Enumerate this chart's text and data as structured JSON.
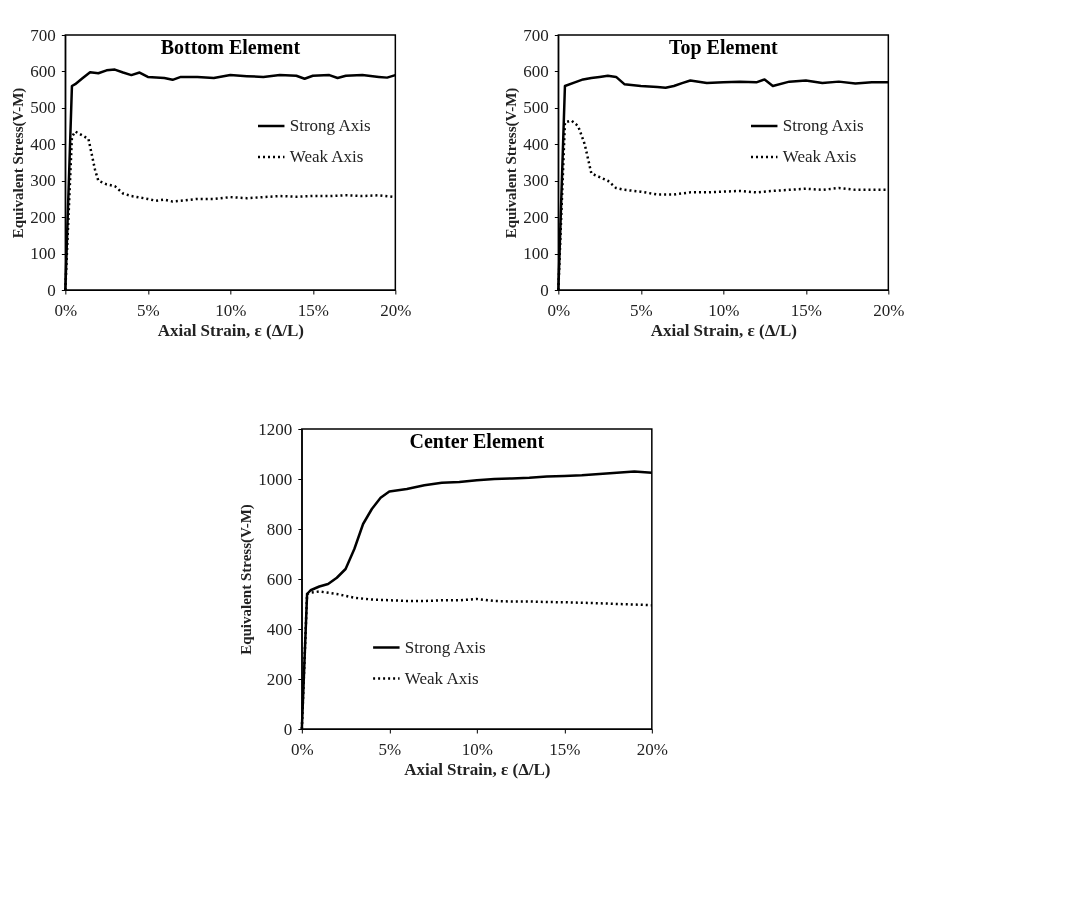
{
  "chart_data": [
    {
      "type": "line",
      "title": "Bottom Element",
      "xlabel": "Axial Strain, ε (Δ/L)",
      "ylabel": "Equivalent Stress(V-M)",
      "xlim": [
        0,
        20
      ],
      "xticks": [
        {
          "value": 0,
          "label": "0%"
        },
        {
          "value": 5,
          "label": "5%"
        },
        {
          "value": 10,
          "label": "10%"
        },
        {
          "value": 15,
          "label": "15%"
        },
        {
          "value": 20,
          "label": "20%"
        }
      ],
      "ylim": [
        0,
        700
      ],
      "yticks": [
        0,
        100,
        200,
        300,
        400,
        500,
        600,
        700
      ],
      "legend": "right",
      "grid": false,
      "series": [
        {
          "name": "Strong Axis",
          "color": "#000000",
          "line_style": "solid",
          "x": [
            0,
            0.4,
            0.6,
            1,
            1.5,
            2,
            2.5,
            3,
            3.5,
            4,
            4.5,
            5,
            6,
            6.5,
            7,
            8,
            9,
            10,
            11,
            12,
            13,
            14,
            14.5,
            15,
            16,
            16.5,
            17,
            18,
            19,
            19.5,
            20
          ],
          "values": [
            0,
            560,
            565,
            580,
            598,
            595,
            603,
            605,
            597,
            590,
            597,
            585,
            582,
            577,
            585,
            585,
            582,
            590,
            587,
            585,
            590,
            588,
            580,
            588,
            590,
            582,
            588,
            590,
            585,
            583,
            590
          ]
        },
        {
          "name": "Weak Axis",
          "color": "#000000",
          "line_style": "dotted",
          "x": [
            0,
            0.4,
            0.6,
            1,
            1.4,
            1.8,
            2,
            2.5,
            3,
            3.5,
            4,
            5,
            5.5,
            6,
            6.5,
            7,
            8,
            9,
            10,
            11,
            12,
            13,
            14,
            15,
            16,
            17,
            18,
            19,
            20
          ],
          "values": [
            0,
            420,
            435,
            425,
            415,
            330,
            300,
            290,
            285,
            265,
            258,
            250,
            245,
            248,
            243,
            245,
            250,
            250,
            255,
            252,
            255,
            258,
            256,
            258,
            258,
            260,
            258,
            260,
            255
          ]
        }
      ]
    },
    {
      "type": "line",
      "title": "Top Element",
      "xlabel": "Axial Strain, ε (Δ/L)",
      "ylabel": "Equivalent Stress(V-M)",
      "xlim": [
        0,
        20
      ],
      "xticks": [
        {
          "value": 0,
          "label": "0%"
        },
        {
          "value": 5,
          "label": "5%"
        },
        {
          "value": 10,
          "label": "10%"
        },
        {
          "value": 15,
          "label": "15%"
        },
        {
          "value": 20,
          "label": "20%"
        }
      ],
      "ylim": [
        0,
        700
      ],
      "yticks": [
        0,
        100,
        200,
        300,
        400,
        500,
        600,
        700
      ],
      "legend": "right",
      "grid": false,
      "series": [
        {
          "name": "Strong Axis",
          "color": "#000000",
          "line_style": "solid",
          "x": [
            0,
            0.4,
            1,
            1.5,
            2,
            2.5,
            3,
            3.5,
            4,
            5,
            6,
            6.5,
            7,
            7.5,
            8,
            9,
            10,
            11,
            12,
            12.5,
            13,
            14,
            15,
            16,
            17,
            18,
            19,
            20
          ],
          "values": [
            0,
            560,
            570,
            578,
            582,
            585,
            588,
            585,
            565,
            560,
            557,
            555,
            560,
            568,
            575,
            568,
            570,
            572,
            570,
            578,
            560,
            572,
            575,
            568,
            572,
            567,
            570,
            570
          ]
        },
        {
          "name": "Weak Axis",
          "color": "#000000",
          "line_style": "dotted",
          "x": [
            0,
            0.4,
            0.8,
            1.2,
            1.6,
            2,
            2.5,
            3,
            3.5,
            4,
            5,
            6,
            7,
            8,
            9,
            10,
            11,
            12,
            13,
            14,
            15,
            16,
            17,
            18,
            19,
            20
          ],
          "values": [
            0,
            460,
            465,
            450,
            400,
            320,
            310,
            300,
            280,
            275,
            270,
            262,
            262,
            268,
            268,
            270,
            272,
            268,
            272,
            275,
            278,
            275,
            280,
            275,
            275,
            275
          ]
        }
      ]
    },
    {
      "type": "line",
      "title": "Center Element",
      "xlabel": "Axial Strain, ε (Δ/L)",
      "ylabel": "Equivalent Stress(V-M)",
      "xlim": [
        0,
        20
      ],
      "xticks": [
        {
          "value": 0,
          "label": "0%"
        },
        {
          "value": 5,
          "label": "5%"
        },
        {
          "value": 10,
          "label": "10%"
        },
        {
          "value": 15,
          "label": "15%"
        },
        {
          "value": 20,
          "label": "20%"
        }
      ],
      "ylim": [
        0,
        1200
      ],
      "yticks": [
        0,
        200,
        400,
        600,
        800,
        1000,
        1200
      ],
      "legend": "bottom",
      "grid": false,
      "series": [
        {
          "name": "Strong Axis",
          "color": "#000000",
          "line_style": "solid",
          "x": [
            0,
            0.3,
            0.5,
            1,
            1.5,
            2,
            2.5,
            3,
            3.5,
            4,
            4.5,
            5,
            6,
            7,
            8,
            9,
            10,
            11,
            12,
            13,
            14,
            15,
            16,
            17,
            18,
            19,
            20
          ],
          "values": [
            0,
            540,
            555,
            570,
            580,
            605,
            640,
            720,
            820,
            880,
            925,
            950,
            960,
            975,
            985,
            988,
            995,
            1000,
            1002,
            1005,
            1010,
            1012,
            1015,
            1020,
            1025,
            1030,
            1025
          ]
        },
        {
          "name": "Weak Axis",
          "color": "#000000",
          "line_style": "dotted",
          "x": [
            0,
            0.3,
            0.5,
            1,
            2,
            3,
            4,
            5,
            6,
            7,
            8,
            9,
            10,
            11,
            12,
            13,
            14,
            15,
            16,
            17,
            18,
            19,
            20
          ],
          "values": [
            0,
            540,
            545,
            550,
            540,
            525,
            518,
            515,
            512,
            512,
            515,
            515,
            520,
            512,
            510,
            510,
            508,
            507,
            505,
            503,
            500,
            498,
            495
          ]
        }
      ]
    }
  ]
}
